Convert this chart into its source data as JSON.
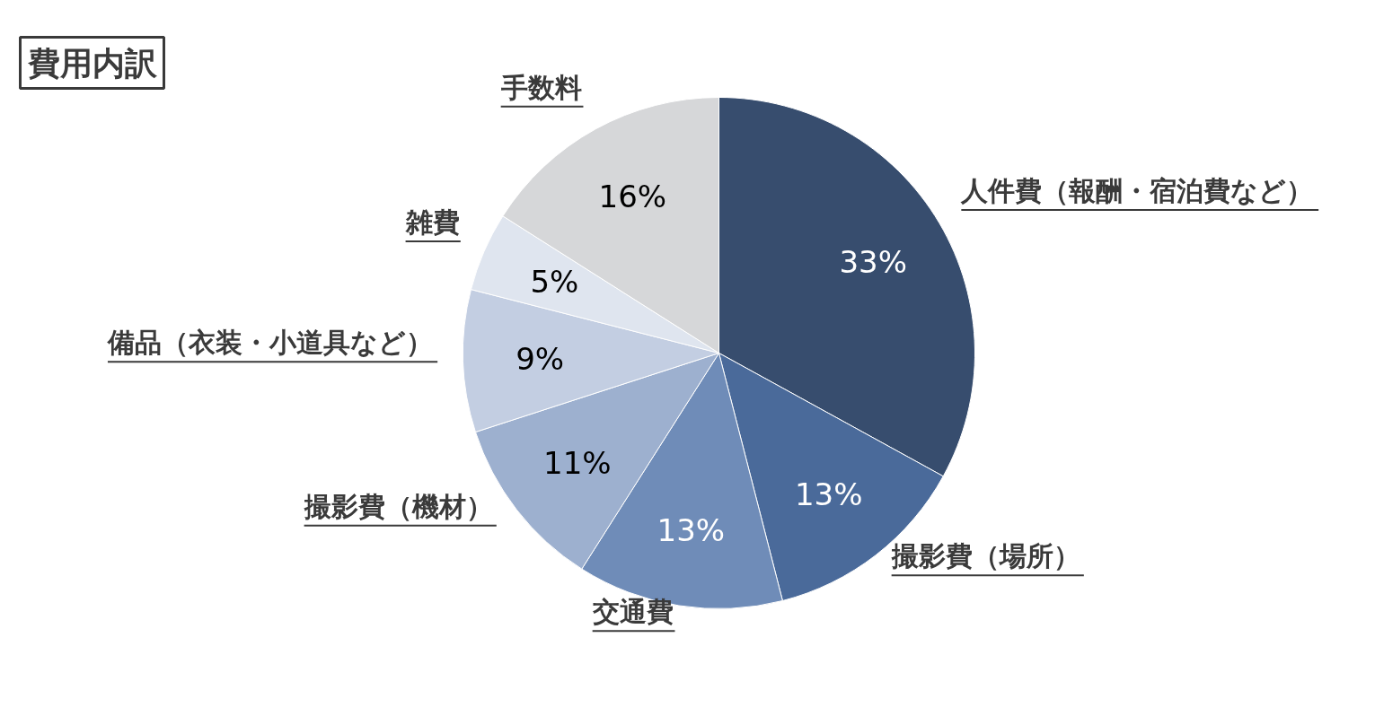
{
  "chart_data": {
    "type": "pie",
    "title": "費用内訳",
    "categories": [
      "人件費（報酬・宿泊費など）",
      "撮影費（場所）",
      "交通費",
      "撮影費（機材）",
      "備品（衣装・小道具など）",
      "雑費",
      "手数料"
    ],
    "values": [
      33,
      13,
      13,
      11,
      9,
      5,
      16
    ],
    "colors": [
      "#374d6e",
      "#4a6a9a",
      "#6f8cb8",
      "#9db0cf",
      "#c3cee2",
      "#dfe5ef",
      "#d6d7d9"
    ],
    "value_labels": [
      "33%",
      "13%",
      "13%",
      "11%",
      "9%",
      "5%",
      "16%"
    ]
  }
}
